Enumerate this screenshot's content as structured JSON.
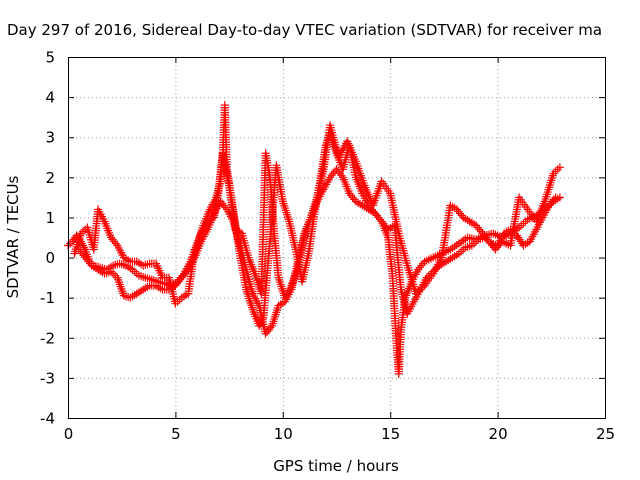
{
  "chart_data": {
    "type": "scatter",
    "title": "Day 297 of 2016, Sidereal Day-to-day VTEC variation (SDTVAR) for receiver ma",
    "xlabel": "GPS time / hours",
    "ylabel": "SDTVAR / TECUs",
    "xlim": [
      0,
      25
    ],
    "ylim": [
      -4,
      5
    ],
    "x_ticks": [
      "0",
      "5",
      "10",
      "15",
      "20",
      "25"
    ],
    "y_ticks": [
      "-4",
      "-3",
      "-2",
      "-1",
      "0",
      "1",
      "2",
      "3",
      "4",
      "5"
    ],
    "grid": true,
    "marker": "+",
    "series": [
      {
        "color": "#ff0000",
        "x": [
          0.0,
          0.2,
          0.4,
          0.6,
          0.8,
          1.0,
          1.2,
          1.5,
          1.8,
          2.1,
          2.4,
          2.7,
          3.0,
          3.3,
          3.6,
          3.9,
          4.2,
          4.5,
          4.8,
          5.1,
          5.4,
          5.7,
          6.0,
          6.3,
          6.6,
          6.9,
          7.1,
          7.2,
          7.3,
          7.4,
          7.6,
          7.8,
          8.0,
          8.3,
          8.6,
          8.9,
          9.1,
          9.3,
          9.5,
          9.7,
          10.0,
          10.3,
          10.6,
          10.9,
          11.2,
          11.5,
          11.8,
          12.0,
          12.2,
          12.5,
          12.8,
          13.1,
          13.4,
          13.7,
          14.0,
          14.3,
          14.6,
          14.9,
          15.1,
          15.3,
          15.4,
          15.5,
          15.7,
          16.0,
          16.3,
          16.6,
          17.0,
          17.4,
          17.8,
          18.2,
          18.6,
          19.0,
          19.4,
          19.8,
          20.2,
          20.6,
          21.0,
          21.4,
          21.8,
          22.2,
          22.6,
          22.9
        ],
        "y": [
          0.3,
          0.4,
          0.55,
          0.4,
          0.2,
          -0.1,
          -0.2,
          -0.25,
          -0.3,
          -0.2,
          -0.15,
          -0.2,
          -0.3,
          -0.45,
          -0.5,
          -0.55,
          -0.6,
          -0.65,
          -0.7,
          -0.6,
          -0.4,
          -0.1,
          0.3,
          0.8,
          1.2,
          1.5,
          1.9,
          2.5,
          3.8,
          2.2,
          1.5,
          0.8,
          0.1,
          -0.8,
          -1.3,
          -1.7,
          -1.5,
          -0.2,
          1.0,
          2.3,
          1.4,
          0.9,
          0.2,
          -0.6,
          0.1,
          1.2,
          2.1,
          2.8,
          3.1,
          2.6,
          2.2,
          2.8,
          2.0,
          1.6,
          1.3,
          1.1,
          0.9,
          0.5,
          -0.4,
          -2.2,
          -2.9,
          -1.8,
          -1.0,
          -0.6,
          -0.3,
          -0.1,
          0.0,
          0.1,
          0.2,
          0.35,
          0.5,
          0.45,
          0.55,
          0.6,
          0.5,
          0.6,
          0.75,
          0.95,
          1.05,
          1.2,
          1.4,
          1.5
        ]
      },
      {
        "color": "#ff0000",
        "x": [
          0.3,
          0.6,
          0.9,
          1.2,
          1.4,
          1.7,
          2.0,
          2.3,
          2.6,
          2.9,
          3.2,
          3.5,
          3.8,
          4.1,
          4.4,
          4.7,
          5.0,
          5.3,
          5.6,
          5.9,
          6.2,
          6.5,
          6.8,
          7.0,
          7.2,
          7.5,
          7.8,
          8.1,
          8.4,
          8.7,
          9.0,
          9.2,
          9.4,
          9.6,
          9.8,
          10.1,
          10.4,
          10.7,
          11.0,
          11.3,
          11.6,
          11.9,
          12.2,
          12.6,
          13.0,
          13.4,
          13.8,
          14.2,
          14.6,
          15.0,
          15.4,
          15.8,
          16.2,
          16.6,
          17.0,
          17.4,
          17.8,
          18.1,
          18.4,
          18.7,
          19.0,
          19.3,
          19.6,
          19.9,
          20.2,
          20.6,
          21.0,
          21.4,
          21.8,
          22.2,
          22.6,
          22.9
        ],
        "y": [
          0.1,
          0.6,
          0.75,
          0.2,
          1.2,
          0.9,
          0.5,
          0.3,
          0.0,
          -0.1,
          -0.1,
          -0.2,
          -0.15,
          -0.15,
          -0.5,
          -0.5,
          -1.15,
          -1.0,
          -0.9,
          0.2,
          0.6,
          0.9,
          1.0,
          1.6,
          2.6,
          1.8,
          0.7,
          0.6,
          0.0,
          -0.4,
          -0.9,
          2.6,
          2.0,
          0.6,
          -0.5,
          -1.0,
          -0.7,
          -0.3,
          0.6,
          1.0,
          1.5,
          2.2,
          3.3,
          2.5,
          2.9,
          2.4,
          1.8,
          1.3,
          1.9,
          1.6,
          0.6,
          -0.2,
          -0.9,
          -0.7,
          -0.4,
          0.0,
          1.3,
          1.2,
          1.0,
          0.9,
          0.8,
          0.6,
          0.4,
          0.2,
          0.4,
          0.3,
          1.5,
          1.2,
          0.9,
          1.4,
          2.1,
          2.25
        ]
      },
      {
        "color": "#ff0000",
        "x": [
          0.5,
          0.8,
          1.1,
          1.4,
          1.7,
          2.0,
          2.3,
          2.6,
          2.9,
          3.2,
          3.5,
          3.8,
          4.1,
          4.4,
          4.7,
          5.0,
          5.3,
          5.6,
          5.9,
          6.2,
          6.5,
          6.8,
          7.1,
          7.4,
          7.7,
          8.0,
          8.3,
          8.6,
          8.9,
          9.2,
          9.5,
          9.8,
          10.1,
          10.4,
          10.7,
          11.0,
          11.3,
          11.6,
          11.9,
          12.2,
          12.5,
          12.8,
          13.1,
          13.4,
          13.7,
          14.0,
          14.3,
          14.6,
          14.9,
          15.2,
          15.5,
          15.8,
          16.1,
          16.4,
          16.7,
          17.0,
          17.3,
          17.6,
          17.9,
          18.2,
          18.5,
          18.8,
          19.1,
          19.4,
          19.7,
          20.0,
          20.3,
          20.6,
          20.9,
          21.2,
          21.5,
          21.8,
          22.1,
          22.4,
          22.7
        ],
        "y": [
          0.2,
          0.0,
          -0.2,
          -0.3,
          -0.4,
          -0.35,
          -0.5,
          -0.95,
          -1.0,
          -0.9,
          -0.8,
          -0.7,
          -0.7,
          -0.8,
          -0.8,
          -0.7,
          -0.5,
          -0.3,
          0.0,
          0.4,
          0.7,
          1.1,
          1.4,
          1.2,
          0.9,
          0.3,
          -0.3,
          -0.9,
          -1.2,
          -1.9,
          -1.7,
          -1.2,
          -1.1,
          -0.8,
          -0.1,
          0.5,
          1.0,
          1.4,
          1.7,
          2.0,
          2.2,
          2.0,
          1.6,
          1.4,
          1.3,
          1.2,
          1.1,
          0.9,
          0.7,
          0.8,
          -0.8,
          -1.4,
          -1.1,
          -0.8,
          -0.5,
          -0.35,
          -0.2,
          -0.1,
          0.0,
          0.1,
          0.25,
          0.3,
          0.45,
          0.5,
          0.35,
          0.3,
          0.6,
          0.7,
          0.55,
          0.3,
          0.4,
          0.7,
          1.0,
          1.3,
          1.5
        ]
      }
    ]
  }
}
